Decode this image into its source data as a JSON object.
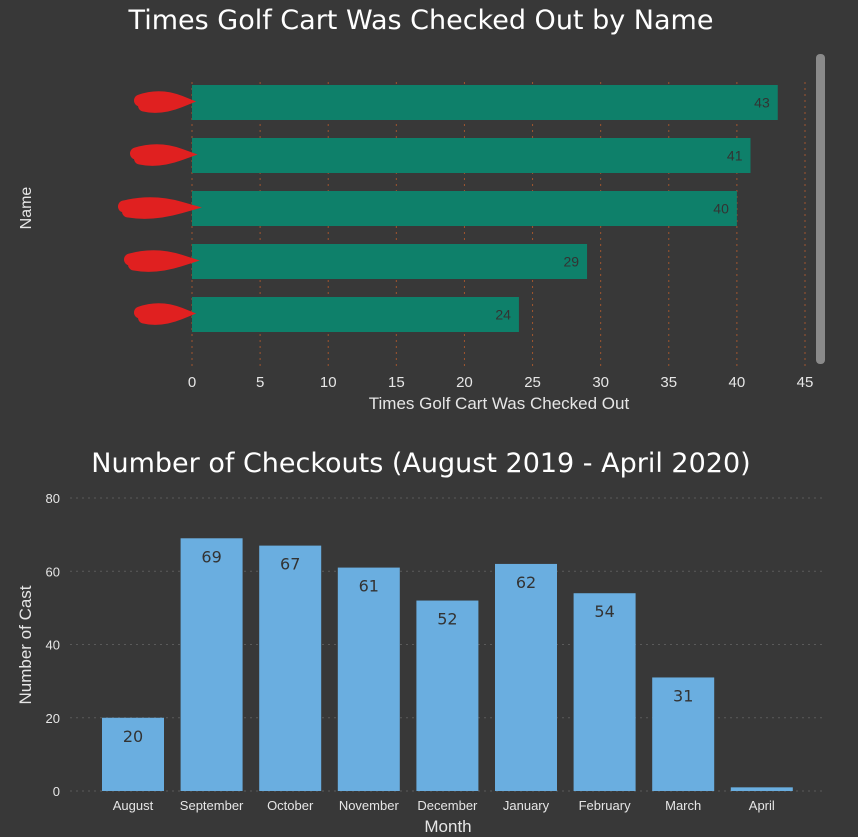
{
  "chart_data": [
    {
      "type": "bar",
      "orientation": "horizontal",
      "title": "Times Golf Cart Was Checked Out by Name",
      "xlabel": "Times Golf Cart Was Checked Out",
      "ylabel": "Name",
      "categories": [
        "",
        "",
        "",
        "",
        ""
      ],
      "values": [
        43,
        41,
        40,
        29,
        24
      ],
      "xlim": [
        0,
        45
      ],
      "xticks": [
        "0",
        "5",
        "10",
        "15",
        "20",
        "25",
        "30",
        "35",
        "40",
        "45"
      ],
      "xtick_values": [
        0,
        5,
        10,
        15,
        20,
        25,
        30,
        35,
        40,
        45
      ],
      "grid": true,
      "bar_color": "#0e806a",
      "redaction_color": "#e02020",
      "data_labels": [
        "43",
        "41",
        "40",
        "29",
        "24"
      ]
    },
    {
      "type": "bar",
      "orientation": "vertical",
      "title": "Number of Checkouts (August 2019 - April 2020)",
      "xlabel": "Month",
      "ylabel": "Number of Cast",
      "categories": [
        "August",
        "September",
        "October",
        "November",
        "December",
        "January",
        "February",
        "March",
        "April"
      ],
      "values": [
        20,
        69,
        67,
        61,
        52,
        62,
        54,
        31,
        1
      ],
      "ylim": [
        0,
        80
      ],
      "yticks": [
        "0",
        "20",
        "40",
        "60",
        "80"
      ],
      "ytick_values": [
        0,
        20,
        40,
        60,
        80
      ],
      "grid": true,
      "bar_color": "#6aaee0",
      "data_labels": [
        "20",
        "69",
        "67",
        "61",
        "52",
        "62",
        "54",
        "31",
        ""
      ]
    }
  ]
}
